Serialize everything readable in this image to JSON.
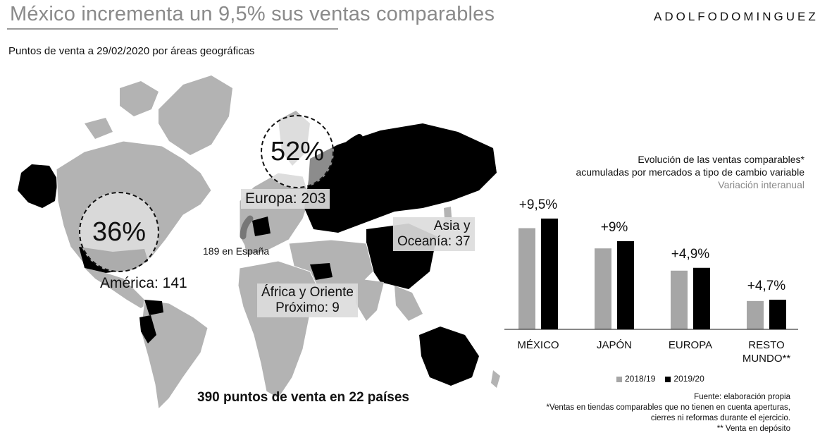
{
  "header": {
    "title": "México incrementa un 9,5% sus ventas comparables",
    "brand": "ADOLFODOMINGUEZ",
    "subtitle": "Puntos de venta a 29/02/2020 por áreas geográficas"
  },
  "map": {
    "europe_pct": "52%",
    "america_pct": "36%",
    "europe_label": "Europa: 203",
    "spain_label": "189 en España",
    "america_label": "América: 141",
    "asia_label_1": "Asia y",
    "asia_label_2": "Oceanía: 37",
    "africa_label_1": "África y Oriente",
    "africa_label_2": "Próximo: 9",
    "total_label": "390 puntos de venta en 22 países"
  },
  "chart_header": {
    "line1": "Evolución de las ventas comparables*",
    "line2": "acumuladas por mercados a tipo de cambio variable",
    "line3": "Variación interanual"
  },
  "chart_data": {
    "type": "bar",
    "categories": [
      "MÉXICO",
      "JAPÓN",
      "EUROPA",
      "RESTO MUNDO**"
    ],
    "category_lines": [
      [
        "MÉXICO"
      ],
      [
        "JAPÓN"
      ],
      [
        "EUROPA"
      ],
      [
        "RESTO",
        "MUNDO**"
      ]
    ],
    "series": [
      {
        "name": "2018/19",
        "color": "#a6a6a6",
        "values": [
          100,
          80,
          58,
          28
        ]
      },
      {
        "name": "2019/20",
        "color": "#000000",
        "values": [
          109.5,
          87.2,
          60.8,
          29.3
        ]
      }
    ],
    "annotations": [
      "+9,5%",
      "+9%",
      "+4,9%",
      "+4,7%"
    ],
    "ylim": [
      0,
      115
    ],
    "grid": false,
    "legend_position": "bottom"
  },
  "notes": {
    "line1": "Fuente: elaboración propia",
    "line2": "*Ventas en tiendas comparables que no tienen en cuenta aperturas,",
    "line3": "cierres ni reformas durante el ejercicio.",
    "line4": "** Venta en depósito"
  },
  "colors": {
    "title": "#8a8a8a",
    "map_gray": "#b3b3b3",
    "map_black": "#000000",
    "bar_prev": "#a6a6a6",
    "bar_curr": "#000000"
  }
}
